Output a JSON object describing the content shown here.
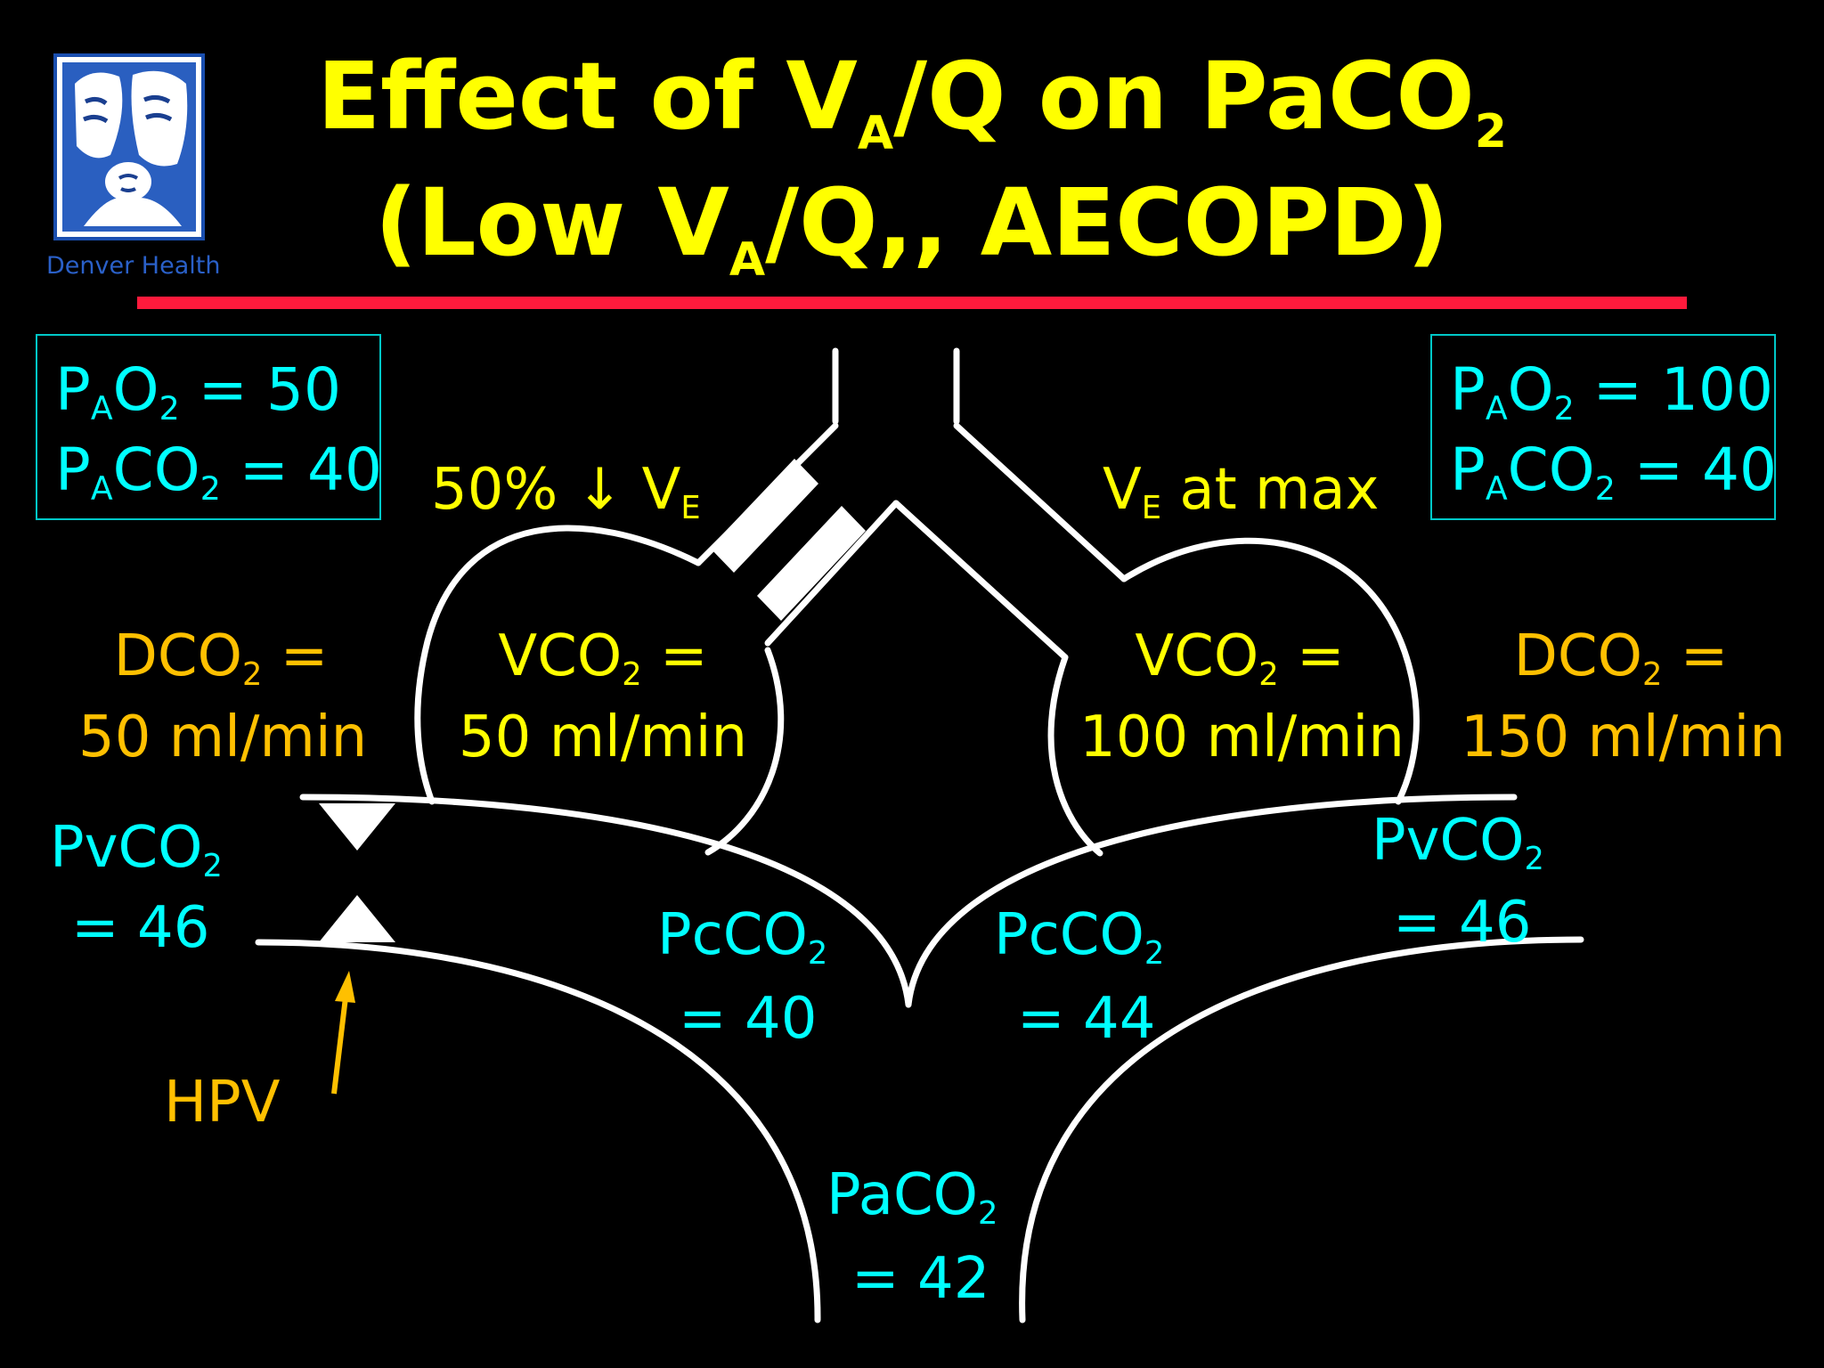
{
  "logo": {
    "brand": "Denver Health",
    "icon": "denver-health-family-logo"
  },
  "title": {
    "line1": {
      "pre": "Effect of V",
      "sub1": "A",
      "mid": "/Q on PaCO",
      "sub2": "2"
    },
    "line2": {
      "pre": "(Low V",
      "sub1": "A",
      "post": "/Q,, AECOPD)"
    }
  },
  "left_box": {
    "line1": {
      "p": "P",
      "a": "A",
      "o": "O",
      "two": "2",
      "val": " = 50"
    },
    "line2": {
      "p": "P",
      "a": "A",
      "co": "CO",
      "two": "2",
      "val": " = 40"
    }
  },
  "right_box": {
    "line1": {
      "p": "P",
      "a": "A",
      "o": "O",
      "two": "2",
      "val": " = 100"
    },
    "line2": {
      "p": "P",
      "a": "A",
      "co": "CO",
      "two": "2",
      "val": " = 40"
    }
  },
  "left_ve": {
    "pre": "50% ",
    "arrow": "↓",
    "v": " V",
    "sub": "E"
  },
  "right_ve": {
    "v": "V",
    "sub": "E",
    "post": " at max"
  },
  "left_dco2": {
    "pre": "DCO",
    "sub": "2",
    "post": " =",
    "value": "50 ml/min"
  },
  "right_dco2": {
    "pre": "DCO",
    "sub": "2",
    "post": " =",
    "value": "150 ml/min"
  },
  "left_vco2": {
    "pre": "VCO",
    "sub": "2",
    "post": " =",
    "value": "50 ml/min"
  },
  "right_vco2": {
    "pre": "VCO",
    "sub": "2",
    "post": " =",
    "value": "100 ml/min"
  },
  "left_pvco2": {
    "pre": "PvCO",
    "sub": "2",
    "value": "= 46"
  },
  "right_pvco2": {
    "pre": "PvCO",
    "sub": "2",
    "value": "= 46"
  },
  "left_pcco2": {
    "pre": "PcCO",
    "sub": "2",
    "value": "= 40"
  },
  "right_pcco2": {
    "pre": "PcCO",
    "sub": "2",
    "value": "= 44"
  },
  "paco2": {
    "pre": "PaCO",
    "sub": "2",
    "value": "= 42"
  },
  "hpv": "HPV",
  "colors": {
    "title": "#ffff00",
    "rule": "#ff1a3c",
    "cyan": "#00ffff",
    "orange": "#ffc000",
    "lines": "#ffffff",
    "box_border": "#00c8c8"
  }
}
